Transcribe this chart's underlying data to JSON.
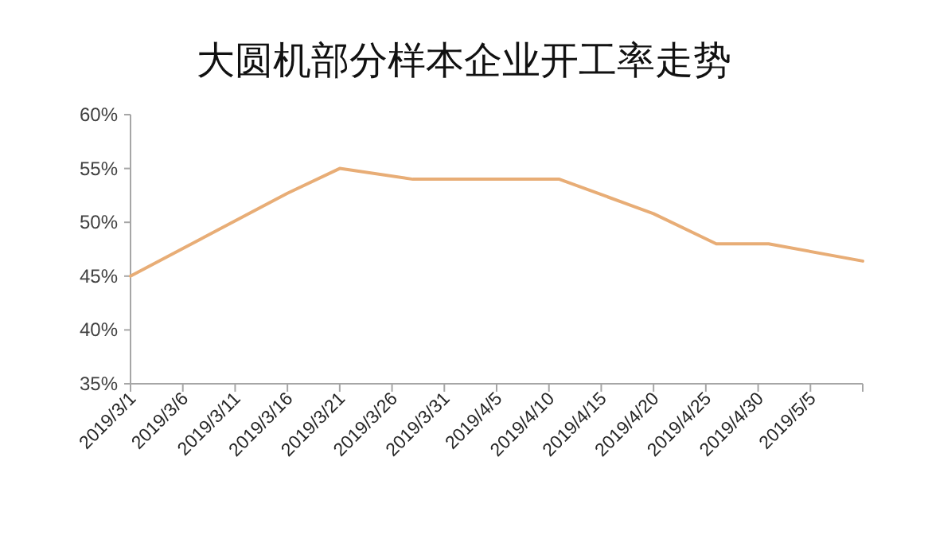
{
  "chart_data": {
    "type": "line",
    "title": "大圆机部分样本企业开工率走势",
    "x": [
      "2019-03-01",
      "2019-03-16",
      "2019-03-21",
      "2019-03-28",
      "2019-04-11",
      "2019-04-20",
      "2019-04-26",
      "2019-05-01",
      "2019-05-10"
    ],
    "series": [
      {
        "color": "#e8ad76",
        "values": [
          45,
          52.7,
          55,
          54,
          54,
          50.8,
          48,
          48,
          46.4
        ]
      }
    ],
    "xlim": [
      "2019-03-01",
      "2019-05-10"
    ],
    "xticks": [
      {
        "value": "2019-03-01",
        "label": "2019/3/1"
      },
      {
        "value": "2019-03-06",
        "label": "2019/3/6"
      },
      {
        "value": "2019-03-11",
        "label": "2019/3/11"
      },
      {
        "value": "2019-03-16",
        "label": "2019/3/16"
      },
      {
        "value": "2019-03-21",
        "label": "2019/3/21"
      },
      {
        "value": "2019-03-26",
        "label": "2019/3/26"
      },
      {
        "value": "2019-03-31",
        "label": "2019/3/31"
      },
      {
        "value": "2019-04-05",
        "label": "2019/4/5"
      },
      {
        "value": "2019-04-10",
        "label": "2019/4/10"
      },
      {
        "value": "2019-04-15",
        "label": "2019/4/15"
      },
      {
        "value": "2019-04-20",
        "label": "2019/4/20"
      },
      {
        "value": "2019-04-25",
        "label": "2019/4/25"
      },
      {
        "value": "2019-04-30",
        "label": "2019/4/30"
      },
      {
        "value": "2019-05-05",
        "label": "2019/5/5"
      },
      {
        "value": "2019-05-10",
        "label": null
      }
    ],
    "ylim": [
      35,
      60
    ],
    "yticks": [
      {
        "value": 35,
        "label": "35%"
      },
      {
        "value": 40,
        "label": "40%"
      },
      {
        "value": 45,
        "label": "45%"
      },
      {
        "value": 50,
        "label": "50%"
      },
      {
        "value": 55,
        "label": "55%"
      },
      {
        "value": 60,
        "label": "60%"
      }
    ],
    "grid": false,
    "marker": "none",
    "line_style": "solid"
  }
}
